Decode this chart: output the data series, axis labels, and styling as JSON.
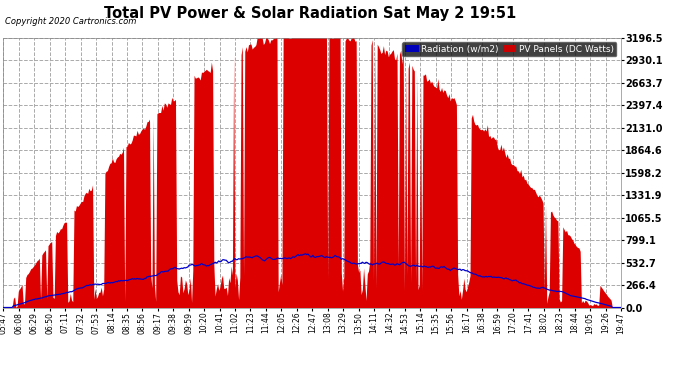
{
  "title": "Total PV Power & Solar Radiation Sat May 2 19:51",
  "copyright": "Copyright 2020 Cartronics.com",
  "legend_radiation": "Radiation (w/m2)",
  "legend_pv": "PV Panels (DC Watts)",
  "legend_radiation_bg": "#0000bb",
  "legend_pv_bg": "#cc0000",
  "pv_color": "#dd0000",
  "radiation_color": "#0000cc",
  "background_color": "#ffffff",
  "plot_bg_color": "#ffffff",
  "grid_color": "#aaaaaa",
  "ymax": 3196.5,
  "ymin": 0.0,
  "yticks": [
    0.0,
    266.4,
    532.7,
    799.1,
    1065.5,
    1331.9,
    1598.2,
    1864.6,
    2131.0,
    2397.4,
    2663.7,
    2930.1,
    3196.5
  ],
  "n_points": 500
}
